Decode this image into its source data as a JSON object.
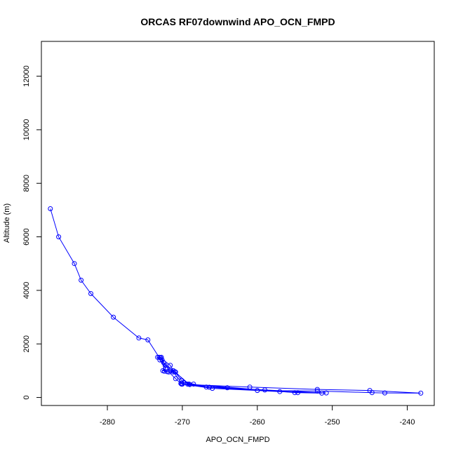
{
  "chart_data": {
    "type": "line",
    "title": "ORCAS RF07downwind APO_OCN_FMPD",
    "xlabel": "APO_OCN_FMPD",
    "ylabel": "Altitude (m)",
    "xlim": [
      -288.8,
      -236.4
    ],
    "ylim": [
      -300,
      13300
    ],
    "xticks": [
      -280,
      -270,
      -260,
      -250,
      -240
    ],
    "yticks": [
      0,
      2000,
      4000,
      6000,
      8000,
      10000,
      12000
    ],
    "grid": false,
    "color": "#0000ff",
    "series": [
      {
        "points": [
          [
            -287.6,
            7050
          ],
          [
            -286.5,
            6000
          ],
          [
            -284.4,
            5000
          ],
          [
            -283.5,
            4380
          ],
          [
            -282.2,
            3880
          ],
          [
            -279.2,
            3000
          ],
          [
            -275.8,
            2220
          ],
          [
            -274.6,
            2150
          ],
          [
            -273.1,
            1500
          ],
          [
            -272.8,
            1500
          ],
          [
            -272.3,
            1200
          ],
          [
            -271.6,
            1000
          ],
          [
            -270.9,
            950
          ],
          [
            -269.3,
            500
          ],
          [
            -264.0,
            360
          ],
          [
            -259.0,
            280
          ],
          [
            -254.6,
            180
          ],
          [
            -251.4,
            160
          ],
          [
            -257.0,
            220
          ],
          [
            -266.0,
            340
          ],
          [
            -270.0,
            500
          ],
          [
            -270.2,
            520
          ],
          [
            -269.0,
            480
          ],
          [
            -261.0,
            390
          ],
          [
            -252.0,
            300
          ],
          [
            -245.0,
            260
          ],
          [
            -238.2,
            160
          ],
          [
            -243.0,
            170
          ],
          [
            -244.7,
            180
          ],
          [
            -252.0,
            240
          ],
          [
            -260.0,
            260
          ],
          [
            -266.8,
            390
          ],
          [
            -268.5,
            500
          ],
          [
            -269.8,
            560
          ],
          [
            -270.1,
            640
          ],
          [
            -271.0,
            960
          ],
          [
            -272.0,
            960
          ],
          [
            -272.6,
            1000
          ],
          [
            -272.2,
            1100
          ],
          [
            -273.0,
            1400
          ],
          [
            -273.3,
            1500
          ],
          [
            -272.9,
            1480
          ],
          [
            -271.6,
            1200
          ],
          [
            -271.2,
            1000
          ],
          [
            -269.1,
            500
          ],
          [
            -255.0,
            180
          ],
          [
            -250.8,
            170
          ],
          [
            -266.4,
            380
          ],
          [
            -270.0,
            510
          ],
          [
            -271.2,
            950
          ],
          [
            -272.5,
            1300
          ],
          [
            -272.7,
            1400
          ],
          [
            -272.4,
            980
          ],
          [
            -271.8,
            950
          ],
          [
            -270.9,
            700
          ],
          [
            -270.1,
            500
          ]
        ]
      }
    ]
  }
}
